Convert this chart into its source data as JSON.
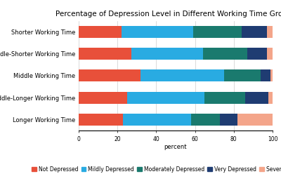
{
  "title": "Percentage of Depression Level in Different Working Time Groups",
  "categories": [
    "Longer Working Time",
    "Middle-Longer Working Time",
    "Middle Working Time",
    "Middle-Shorter Working Time",
    "Shorter Working Time"
  ],
  "segments": {
    "Not Depressed": [
      23,
      25,
      32,
      27,
      22
    ],
    "Mildly Depressed": [
      35,
      40,
      43,
      37,
      37
    ],
    "Moderately Depressed": [
      15,
      21,
      19,
      23,
      25
    ],
    "Very Depressed": [
      9,
      12,
      5,
      10,
      13
    ],
    "Severely Depressed": [
      18,
      2,
      1,
      3,
      3
    ]
  },
  "colors": {
    "Not Depressed": "#e8503a",
    "Mildly Depressed": "#29abe2",
    "Moderately Depressed": "#1a7a6e",
    "Very Depressed": "#1f3c72",
    "Severely Depressed": "#f4a58a"
  },
  "xlabel": "percent",
  "xlim": [
    0,
    100
  ],
  "xticks": [
    0,
    20,
    40,
    60,
    80,
    100
  ],
  "background_color": "#ffffff",
  "title_fontsize": 7.5,
  "label_fontsize": 6.0,
  "tick_fontsize": 5.5,
  "legend_fontsize": 5.5
}
